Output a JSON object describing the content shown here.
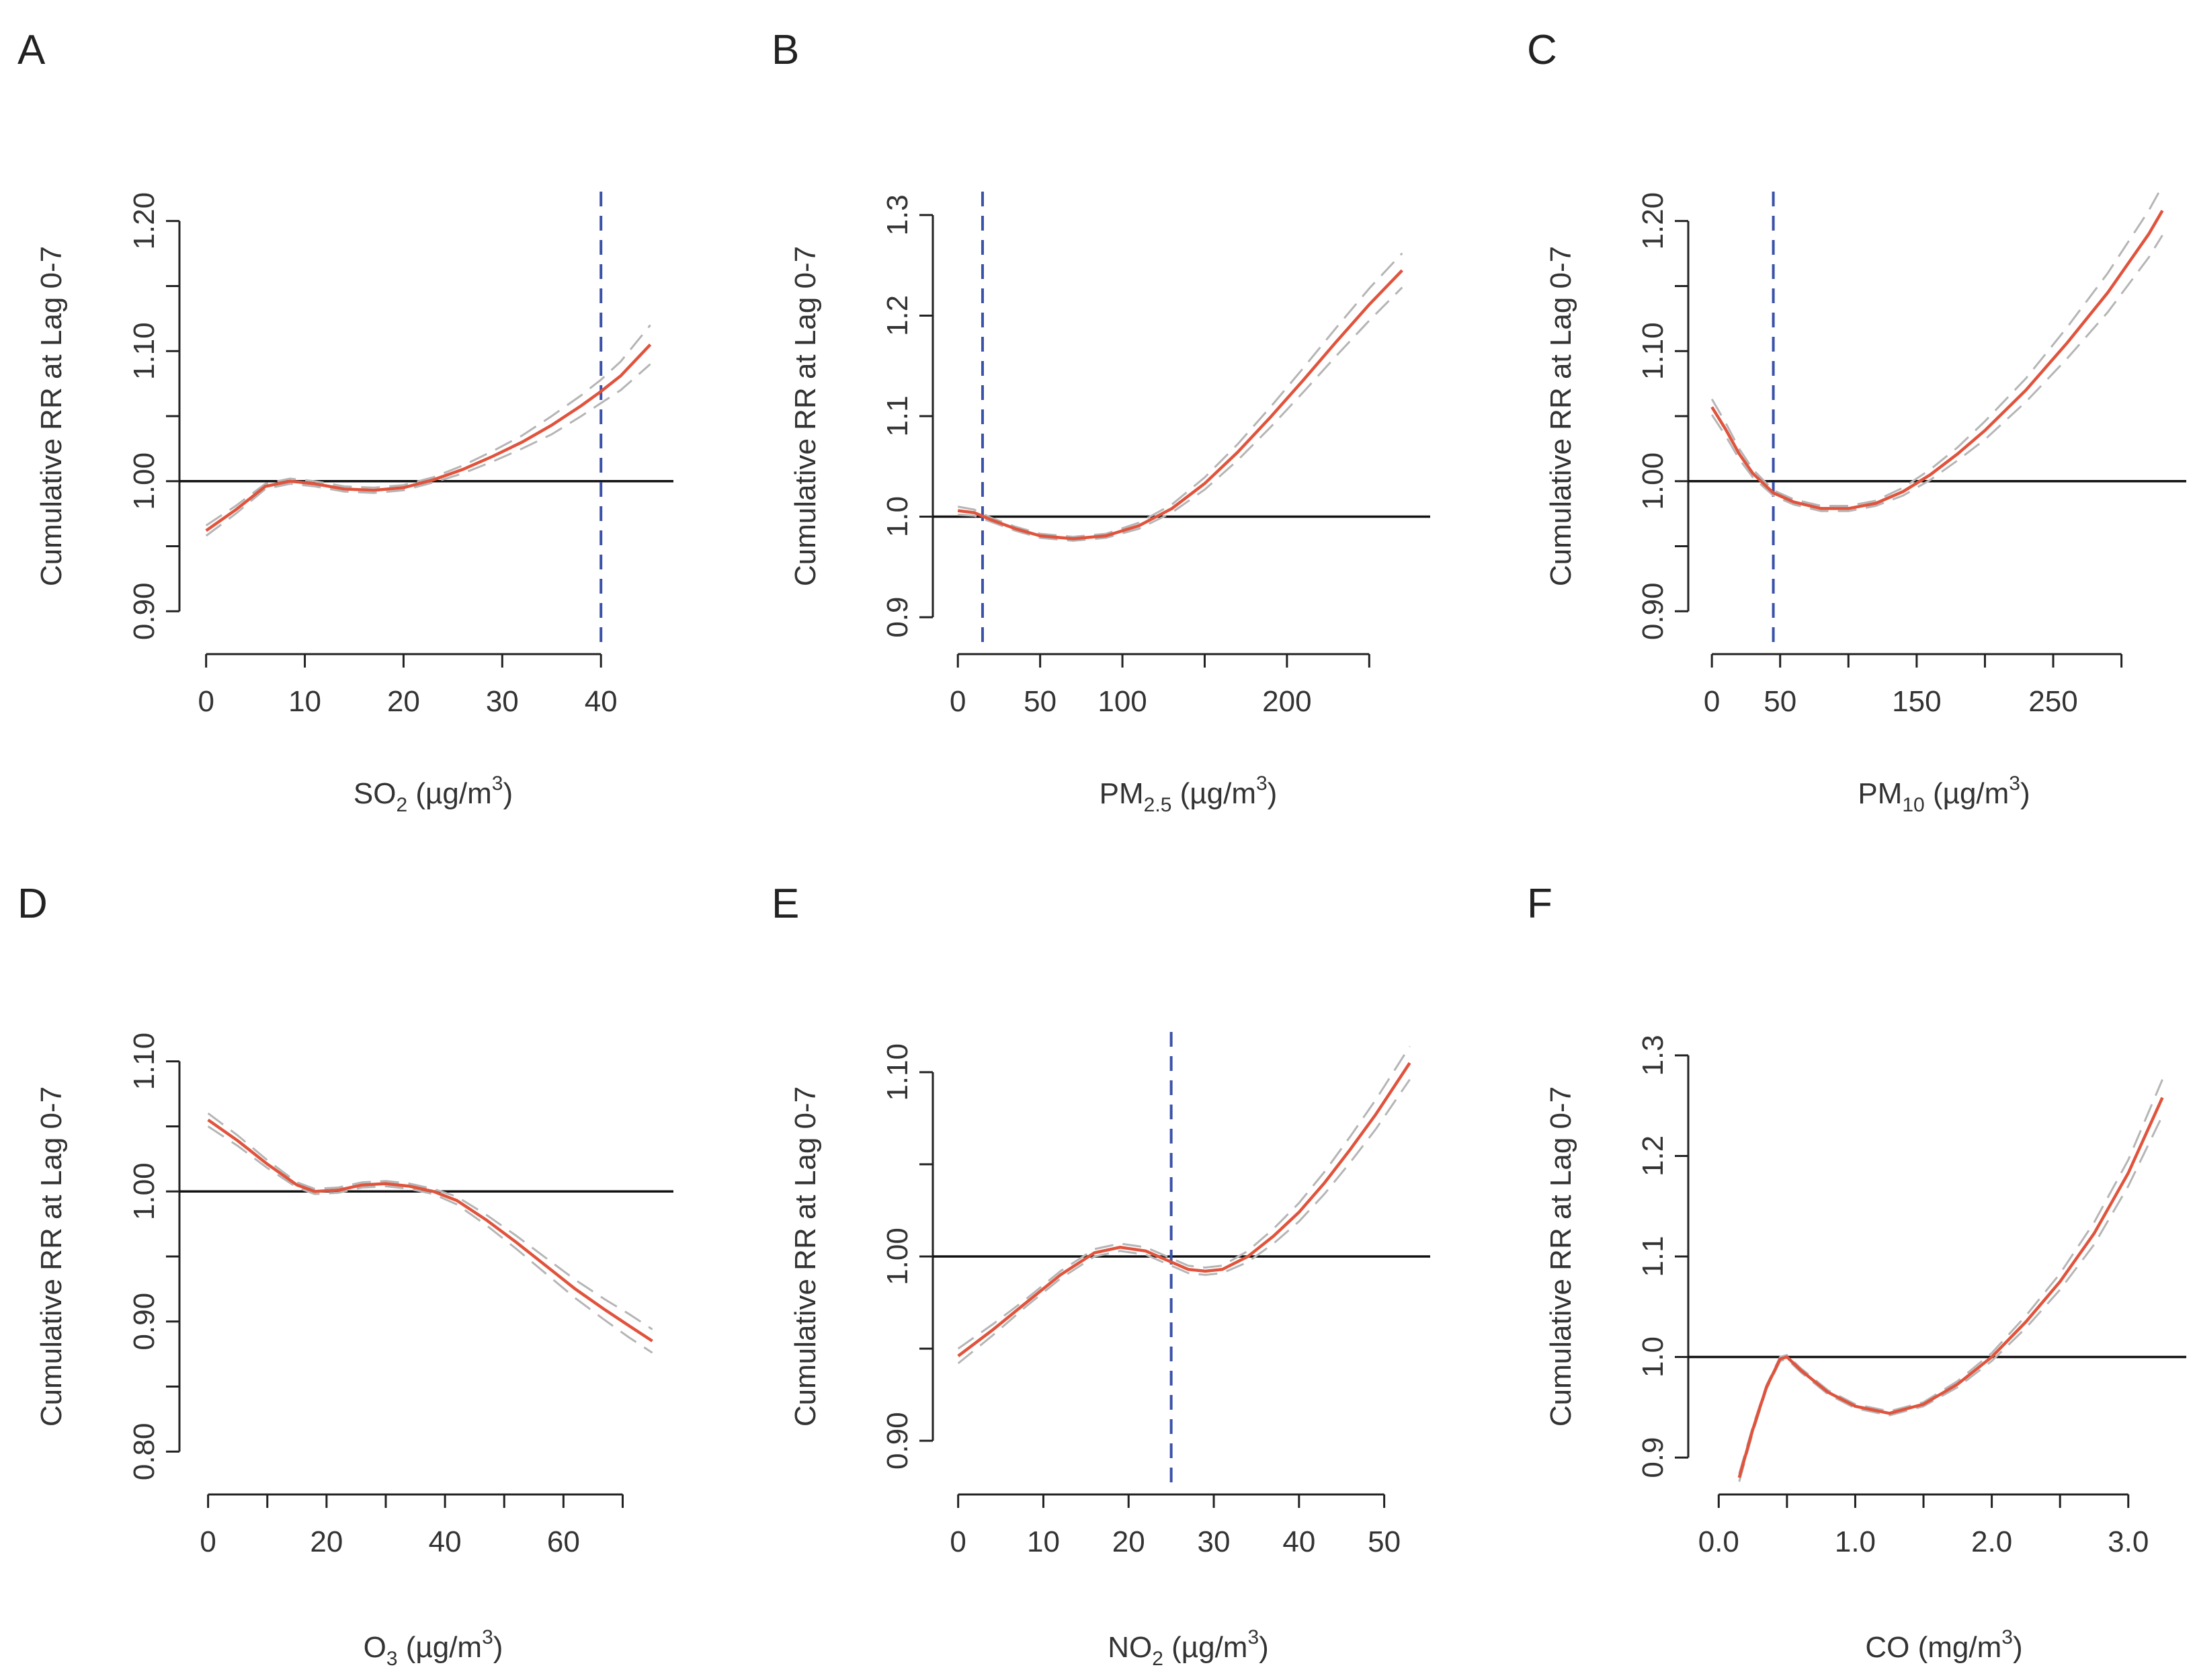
{
  "figure": {
    "y_label_text": "Cumulative RR at Lag 0-7"
  },
  "chart_data": [
    {
      "type": "line",
      "panel": "A",
      "xlabel": {
        "main": "SO",
        "sub": "2",
        "unit_pre": " (µg/m",
        "sup": "3",
        "unit_post": ")"
      },
      "ylabel": "Cumulative RR at Lag 0-7",
      "xlim": [
        -1,
        47
      ],
      "ylim": [
        0.88,
        1.22
      ],
      "xticks": [
        0,
        10,
        20,
        30,
        40
      ],
      "xtick_labels": [
        "0",
        "10",
        "20",
        "30",
        "40"
      ],
      "yticks": [
        0.9,
        0.95,
        1.0,
        1.05,
        1.1,
        1.15,
        1.2
      ],
      "yticks_labeled": [
        0.9,
        1.0,
        1.1,
        1.2
      ],
      "ytick_labels": [
        "0.90",
        "1.00",
        "1.10",
        "1.20"
      ],
      "reference_y": 1.0,
      "vline_x": 40,
      "x": [
        0,
        3,
        6,
        8.5,
        11,
        14,
        17,
        20,
        23,
        26,
        29,
        32,
        35,
        38,
        40,
        42,
        45
      ],
      "y": [
        0.962,
        0.978,
        0.996,
        1.0,
        0.998,
        0.994,
        0.993,
        0.995,
        1.001,
        1.009,
        1.019,
        1.03,
        1.043,
        1.058,
        1.069,
        1.081,
        1.105
      ],
      "ci_lower": [
        0.958,
        0.975,
        0.994,
        0.998,
        0.996,
        0.992,
        0.991,
        0.993,
        0.999,
        1.006,
        1.015,
        1.025,
        1.036,
        1.05,
        1.06,
        1.07,
        1.09
      ],
      "ci_upper": [
        0.966,
        0.981,
        0.998,
        1.002,
        1.0,
        0.996,
        0.995,
        0.997,
        1.003,
        1.012,
        1.023,
        1.035,
        1.05,
        1.066,
        1.078,
        1.092,
        1.12
      ]
    },
    {
      "type": "line",
      "panel": "B",
      "xlabel": {
        "main": "PM",
        "sub": "2.5",
        "unit_pre": " (µg/m",
        "sup": "3",
        "unit_post": ")"
      },
      "ylabel": "Cumulative RR at Lag 0-7",
      "xlim": [
        -5,
        285
      ],
      "ylim": [
        0.88,
        1.32
      ],
      "xticks": [
        0,
        50,
        100,
        150,
        200,
        250
      ],
      "xtick_labels": [
        "0",
        "50",
        "100",
        "",
        "200",
        ""
      ],
      "yticks": [
        0.9,
        1.0,
        1.1,
        1.2,
        1.3
      ],
      "yticks_labeled": [
        0.9,
        1.0,
        1.1,
        1.2,
        1.3
      ],
      "ytick_labels": [
        "0.9",
        "1.0",
        "1.1",
        "1.2",
        "1.3"
      ],
      "reference_y": 1.0,
      "vline_x": 15,
      "x": [
        0,
        10,
        20,
        35,
        50,
        70,
        90,
        110,
        130,
        150,
        170,
        190,
        210,
        230,
        250,
        270
      ],
      "y": [
        1.006,
        1.004,
        0.997,
        0.988,
        0.981,
        0.978,
        0.981,
        0.991,
        1.008,
        1.033,
        1.064,
        1.099,
        1.136,
        1.174,
        1.211,
        1.245
      ],
      "ci_lower": [
        1.002,
        1.001,
        0.995,
        0.986,
        0.979,
        0.976,
        0.979,
        0.988,
        1.004,
        1.027,
        1.056,
        1.089,
        1.124,
        1.16,
        1.195,
        1.228
      ],
      "ci_upper": [
        1.01,
        1.007,
        0.999,
        0.99,
        0.983,
        0.98,
        0.983,
        0.994,
        1.012,
        1.039,
        1.072,
        1.109,
        1.148,
        1.188,
        1.227,
        1.262
      ]
    },
    {
      "type": "line",
      "panel": "C",
      "xlabel": {
        "main": "PM",
        "sub": "10",
        "unit_pre": " (µg/m",
        "sup": "3",
        "unit_post": ")"
      },
      "ylabel": "Cumulative RR at Lag 0-7",
      "xlim": [
        -5,
        345
      ],
      "ylim": [
        0.88,
        1.22
      ],
      "xticks": [
        0,
        50,
        100,
        150,
        200,
        250,
        300
      ],
      "xtick_labels": [
        "0",
        "50",
        "",
        "150",
        "",
        "250",
        ""
      ],
      "yticks": [
        0.9,
        0.95,
        1.0,
        1.05,
        1.1,
        1.15,
        1.2
      ],
      "yticks_labeled": [
        0.9,
        1.0,
        1.1,
        1.2
      ],
      "ytick_labels": [
        "0.90",
        "1.00",
        "1.10",
        "1.20"
      ],
      "reference_y": 1.0,
      "vline_x": 45,
      "x": [
        0,
        10,
        20,
        30,
        45,
        60,
        80,
        100,
        120,
        140,
        160,
        180,
        200,
        230,
        260,
        290,
        320,
        330
      ],
      "y": [
        1.057,
        1.04,
        1.021,
        1.006,
        0.991,
        0.984,
        0.979,
        0.979,
        0.983,
        0.992,
        1.005,
        1.021,
        1.039,
        1.07,
        1.106,
        1.145,
        1.19,
        1.208
      ],
      "ci_lower": [
        1.051,
        1.035,
        1.017,
        1.003,
        0.989,
        0.982,
        0.977,
        0.977,
        0.981,
        0.989,
        1.001,
        1.016,
        1.032,
        1.061,
        1.094,
        1.13,
        1.172,
        1.189
      ],
      "ci_upper": [
        1.063,
        1.045,
        1.025,
        1.009,
        0.993,
        0.986,
        0.981,
        0.981,
        0.985,
        0.995,
        1.009,
        1.026,
        1.046,
        1.079,
        1.118,
        1.16,
        1.208,
        1.227
      ]
    },
    {
      "type": "line",
      "panel": "D",
      "xlabel": {
        "main": "O",
        "sub": "3",
        "unit_pre": " (µg/m",
        "sup": "3",
        "unit_post": ")"
      },
      "ylabel": "Cumulative RR at Lag 0-7",
      "xlim": [
        -2,
        78
      ],
      "ylim": [
        0.78,
        1.12
      ],
      "xticks": [
        0,
        10,
        20,
        30,
        40,
        50,
        60,
        70
      ],
      "xtick_labels": [
        "0",
        "",
        "20",
        "",
        "40",
        "",
        "60",
        ""
      ],
      "yticks": [
        0.8,
        0.85,
        0.9,
        0.95,
        1.0,
        1.05,
        1.1
      ],
      "yticks_labeled": [
        0.8,
        0.9,
        1.0,
        1.1
      ],
      "ytick_labels": [
        "0.80",
        "0.90",
        "1.00",
        "1.10"
      ],
      "reference_y": 1.0,
      "vline_x": null,
      "x": [
        0,
        5,
        10,
        15,
        18,
        22,
        26,
        30,
        34,
        38,
        42,
        47,
        52,
        57,
        62,
        67,
        71,
        75
      ],
      "y": [
        1.055,
        1.039,
        1.021,
        1.005,
        1.0,
        1.001,
        1.005,
        1.006,
        1.004,
        1.0,
        0.993,
        0.978,
        0.961,
        0.943,
        0.925,
        0.909,
        0.897,
        0.885
      ],
      "ci_lower": [
        1.05,
        1.035,
        1.018,
        1.003,
        0.998,
        0.999,
        1.003,
        1.004,
        1.002,
        0.998,
        0.99,
        0.974,
        0.956,
        0.937,
        0.918,
        0.901,
        0.888,
        0.876
      ],
      "ci_upper": [
        1.06,
        1.043,
        1.024,
        1.007,
        1.002,
        1.003,
        1.007,
        1.008,
        1.006,
        1.002,
        0.996,
        0.982,
        0.966,
        0.949,
        0.932,
        0.917,
        0.906,
        0.894
      ]
    },
    {
      "type": "line",
      "panel": "E",
      "xlabel": {
        "main": "NO",
        "sub": "2",
        "unit_pre": " (µg/m",
        "sup": "3",
        "unit_post": ")"
      },
      "ylabel": "Cumulative RR at Lag 0-7",
      "xlim": [
        -1,
        55
      ],
      "ylim": [
        0.88,
        1.12
      ],
      "xticks": [
        0,
        10,
        20,
        30,
        40,
        50
      ],
      "xtick_labels": [
        "0",
        "10",
        "20",
        "30",
        "40",
        "50"
      ],
      "yticks": [
        0.9,
        0.95,
        1.0,
        1.05,
        1.1
      ],
      "yticks_labeled": [
        0.9,
        1.0,
        1.1
      ],
      "ytick_labels": [
        "0.90",
        "1.00",
        "1.10"
      ],
      "reference_y": 1.0,
      "vline_x": 25,
      "x": [
        0,
        4,
        8,
        12,
        16,
        19,
        22,
        25,
        27,
        29,
        31,
        34,
        37,
        40,
        43,
        46,
        49,
        53
      ],
      "y": [
        0.946,
        0.96,
        0.975,
        0.99,
        1.002,
        1.005,
        1.003,
        0.997,
        0.993,
        0.992,
        0.993,
        1.0,
        1.011,
        1.024,
        1.04,
        1.058,
        1.077,
        1.105
      ],
      "ci_lower": [
        0.942,
        0.957,
        0.973,
        0.988,
        1.0,
        1.003,
        1.001,
        0.995,
        0.991,
        0.99,
        0.991,
        0.997,
        1.007,
        1.019,
        1.034,
        1.051,
        1.069,
        1.096
      ],
      "ci_upper": [
        0.95,
        0.963,
        0.977,
        0.992,
        1.004,
        1.007,
        1.005,
        0.999,
        0.995,
        0.994,
        0.995,
        1.003,
        1.015,
        1.029,
        1.046,
        1.065,
        1.085,
        1.114
      ]
    },
    {
      "type": "line",
      "panel": "F",
      "xlabel": {
        "main": "CO (mg/m",
        "sub": "",
        "unit_pre": "",
        "sup": "3",
        "unit_post": ")"
      },
      "ylabel": "Cumulative RR at Lag 0-7",
      "xlim": [
        -0.1,
        3.4
      ],
      "ylim": [
        0.88,
        1.32
      ],
      "xticks": [
        0.0,
        0.5,
        1.0,
        1.5,
        2.0,
        2.5,
        3.0
      ],
      "xtick_labels": [
        "0.0",
        "",
        "1.0",
        "",
        "2.0",
        "",
        "3.0"
      ],
      "yticks": [
        0.9,
        1.0,
        1.1,
        1.2,
        1.3
      ],
      "yticks_labeled": [
        0.9,
        1.0,
        1.1,
        1.2,
        1.3
      ],
      "ytick_labels": [
        "0.9",
        "1.0",
        "1.1",
        "1.2",
        "1.3"
      ],
      "reference_y": 1.0,
      "vline_x": null,
      "x": [
        0.15,
        0.25,
        0.35,
        0.45,
        0.5,
        0.6,
        0.8,
        1.0,
        1.25,
        1.5,
        1.75,
        2.0,
        2.25,
        2.5,
        2.75,
        3.0,
        3.25
      ],
      "y": [
        0.88,
        0.928,
        0.97,
        0.998,
        1.0,
        0.987,
        0.965,
        0.951,
        0.944,
        0.953,
        0.973,
        1.0,
        1.035,
        1.075,
        1.123,
        1.183,
        1.258
      ],
      "ci_lower": [
        0.876,
        0.925,
        0.968,
        0.996,
        0.998,
        0.985,
        0.963,
        0.949,
        0.942,
        0.951,
        0.97,
        0.996,
        1.029,
        1.067,
        1.112,
        1.17,
        1.24
      ],
      "ci_upper": [
        0.884,
        0.931,
        0.972,
        1.0,
        1.002,
        0.989,
        0.967,
        0.953,
        0.946,
        0.955,
        0.976,
        1.004,
        1.041,
        1.083,
        1.134,
        1.196,
        1.276
      ]
    }
  ]
}
